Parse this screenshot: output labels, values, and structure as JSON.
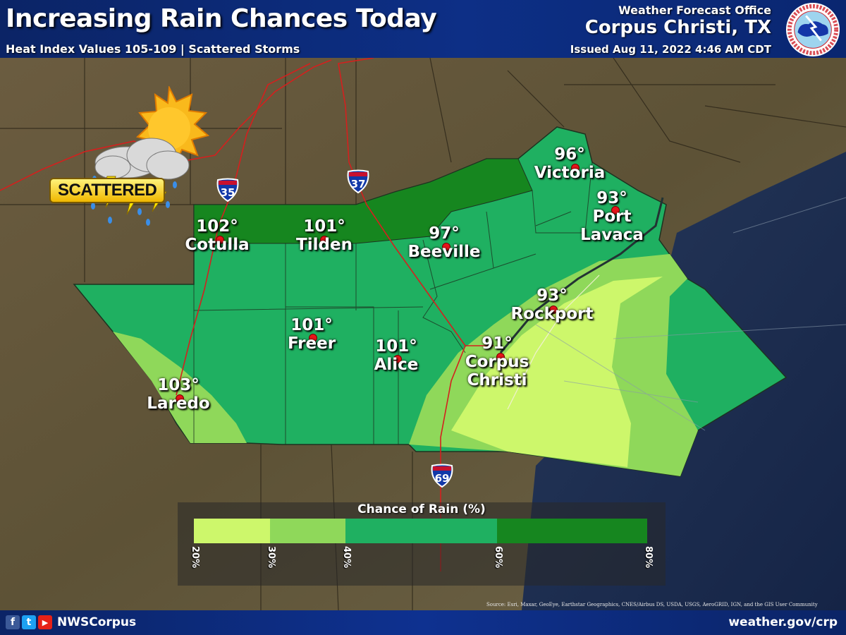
{
  "header": {
    "title": "Increasing Rain Chances Today",
    "subtitle": "Heat Index Values 105-109 | Scattered Storms",
    "office_label": "Weather Forecast Office",
    "office_name": "Corpus Christi, TX",
    "issued": "Issued Aug 11, 2022 4:46 AM CDT",
    "logo_text": "NATIONAL WEATHER SERVICE"
  },
  "icon": {
    "label": "SCATTERED",
    "name": "scattered-thunderstorms-icon"
  },
  "interstates": [
    "35",
    "37",
    "69"
  ],
  "cities": [
    {
      "name": "Cotulla",
      "temp": "102°"
    },
    {
      "name": "Tilden",
      "temp": "101°"
    },
    {
      "name": "Beeville",
      "temp": "97°"
    },
    {
      "name": "Victoria",
      "temp": "96°"
    },
    {
      "name": "Port\nLavaca",
      "temp": "93°"
    },
    {
      "name": "Rockport",
      "temp": "93°"
    },
    {
      "name": "Corpus\nChristi",
      "temp": "91°"
    },
    {
      "name": "Alice",
      "temp": "101°"
    },
    {
      "name": "Freer",
      "temp": "101°"
    },
    {
      "name": "Laredo",
      "temp": "103°"
    }
  ],
  "legend": {
    "title": "Chance of Rain (%)",
    "bins": [
      {
        "range": "20-30",
        "color": "#cdf76b"
      },
      {
        "range": "30-40",
        "color": "#8fd85a"
      },
      {
        "range": "40-60",
        "color": "#1fb061"
      },
      {
        "range": "60-80",
        "color": "#16861f"
      }
    ],
    "ticks": [
      "20%",
      "30%",
      "40%",
      "60%",
      "80%"
    ]
  },
  "source": "Source: Esri, Maxar, GeoEye, Earthstar Geographics, CNES/Airbus DS, USDA, USGS, AeroGRID, IGN, and the GIS User Community",
  "footer": {
    "handle": "NWSCorpus",
    "website": "weather.gov/crp",
    "social": [
      "f",
      "t",
      "▶"
    ]
  }
}
